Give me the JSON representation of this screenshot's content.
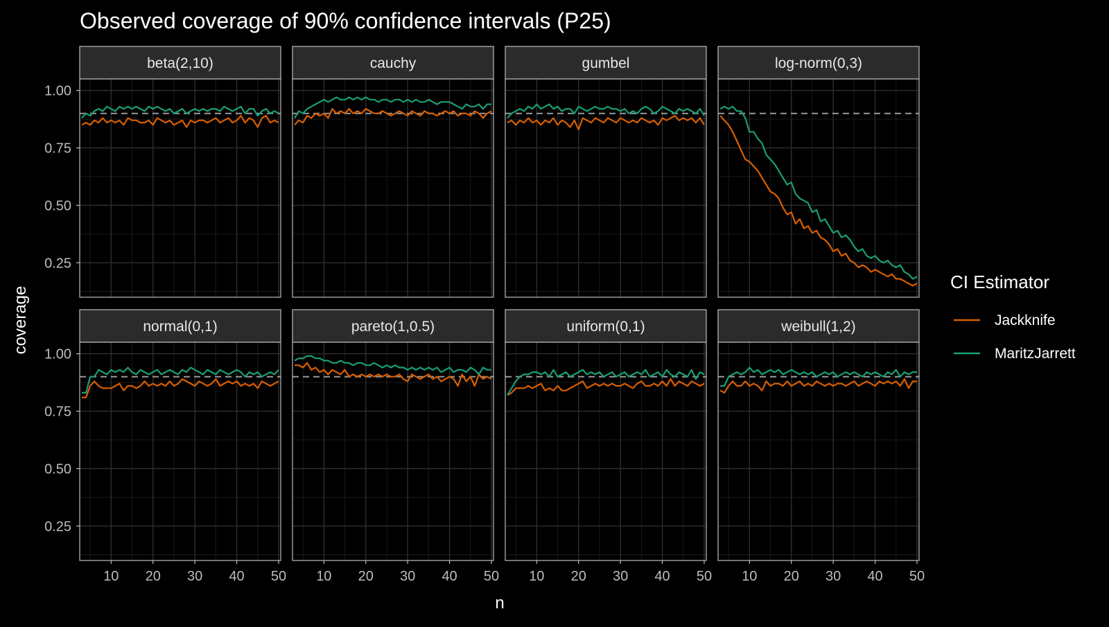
{
  "chart_data": {
    "type": "line",
    "title": "Observed coverage of 90% confidence intervals (P25)",
    "xlabel": "n",
    "ylabel": "coverage",
    "xlim": [
      3,
      50
    ],
    "ylim": [
      0.1,
      1.05
    ],
    "x_ticks": [
      10,
      20,
      30,
      40,
      50
    ],
    "y_ticks": [
      1.0,
      0.75,
      0.5,
      0.25
    ],
    "y_tick_labels": [
      "1.00",
      "0.75",
      "0.50",
      "0.25"
    ],
    "reference_line": 0.9,
    "grid": true,
    "legend": {
      "title": "CI Estimator",
      "placement": "right"
    },
    "colors": {
      "Jackknife": "#d95f02",
      "MaritzJarrett": "#1b9e77",
      "background": "#000000",
      "strip": "#2b2b2b",
      "reference": "#9a9a9a"
    },
    "x": [
      3,
      4,
      5,
      6,
      7,
      8,
      9,
      10,
      11,
      12,
      13,
      14,
      15,
      16,
      17,
      18,
      19,
      20,
      21,
      22,
      23,
      24,
      25,
      26,
      27,
      28,
      29,
      30,
      31,
      32,
      33,
      34,
      35,
      36,
      37,
      38,
      39,
      40,
      41,
      42,
      43,
      44,
      45,
      46,
      47,
      48,
      49,
      50
    ],
    "panels": [
      {
        "label": "beta(2,10)",
        "series": [
          {
            "name": "Jackknife",
            "values": [
              0.85,
              0.86,
              0.85,
              0.87,
              0.86,
              0.88,
              0.86,
              0.87,
              0.86,
              0.87,
              0.85,
              0.88,
              0.87,
              0.87,
              0.86,
              0.86,
              0.87,
              0.85,
              0.88,
              0.87,
              0.86,
              0.87,
              0.85,
              0.86,
              0.87,
              0.84,
              0.87,
              0.86,
              0.87,
              0.87,
              0.86,
              0.87,
              0.88,
              0.86,
              0.87,
              0.88,
              0.86,
              0.87,
              0.89,
              0.86,
              0.88,
              0.87,
              0.84,
              0.88,
              0.89,
              0.86,
              0.87,
              0.86
            ]
          },
          {
            "name": "MaritzJarrett",
            "values": [
              0.88,
              0.9,
              0.89,
              0.91,
              0.92,
              0.91,
              0.93,
              0.92,
              0.91,
              0.93,
              0.92,
              0.93,
              0.92,
              0.93,
              0.92,
              0.91,
              0.93,
              0.92,
              0.93,
              0.92,
              0.91,
              0.92,
              0.9,
              0.91,
              0.92,
              0.9,
              0.91,
              0.92,
              0.91,
              0.92,
              0.91,
              0.92,
              0.92,
              0.91,
              0.93,
              0.92,
              0.91,
              0.92,
              0.93,
              0.9,
              0.92,
              0.92,
              0.89,
              0.91,
              0.92,
              0.9,
              0.91,
              0.9
            ]
          }
        ]
      },
      {
        "label": "cauchy",
        "series": [
          {
            "name": "Jackknife",
            "values": [
              0.85,
              0.87,
              0.86,
              0.89,
              0.88,
              0.9,
              0.89,
              0.9,
              0.88,
              0.92,
              0.9,
              0.91,
              0.9,
              0.92,
              0.9,
              0.91,
              0.9,
              0.92,
              0.91,
              0.9,
              0.9,
              0.91,
              0.9,
              0.89,
              0.9,
              0.91,
              0.9,
              0.89,
              0.91,
              0.9,
              0.89,
              0.91,
              0.9,
              0.9,
              0.89,
              0.9,
              0.91,
              0.9,
              0.91,
              0.89,
              0.9,
              0.9,
              0.89,
              0.91,
              0.9,
              0.88,
              0.9,
              0.91
            ]
          },
          {
            "name": "MaritzJarrett",
            "values": [
              0.88,
              0.91,
              0.9,
              0.92,
              0.93,
              0.94,
              0.95,
              0.96,
              0.95,
              0.96,
              0.97,
              0.96,
              0.96,
              0.97,
              0.96,
              0.97,
              0.96,
              0.97,
              0.96,
              0.96,
              0.95,
              0.96,
              0.96,
              0.95,
              0.96,
              0.96,
              0.95,
              0.96,
              0.95,
              0.96,
              0.95,
              0.95,
              0.96,
              0.95,
              0.94,
              0.95,
              0.95,
              0.95,
              0.94,
              0.93,
              0.92,
              0.94,
              0.93,
              0.93,
              0.94,
              0.92,
              0.94,
              0.94
            ]
          }
        ]
      },
      {
        "label": "gumbel",
        "series": [
          {
            "name": "Jackknife",
            "values": [
              0.86,
              0.87,
              0.85,
              0.87,
              0.86,
              0.88,
              0.86,
              0.87,
              0.85,
              0.87,
              0.86,
              0.88,
              0.85,
              0.87,
              0.86,
              0.84,
              0.87,
              0.83,
              0.88,
              0.87,
              0.86,
              0.88,
              0.87,
              0.86,
              0.88,
              0.87,
              0.86,
              0.88,
              0.87,
              0.86,
              0.87,
              0.86,
              0.88,
              0.87,
              0.86,
              0.87,
              0.85,
              0.88,
              0.87,
              0.88,
              0.89,
              0.87,
              0.88,
              0.87,
              0.88,
              0.86,
              0.88,
              0.85
            ]
          },
          {
            "name": "MaritzJarrett",
            "values": [
              0.88,
              0.9,
              0.91,
              0.92,
              0.91,
              0.93,
              0.92,
              0.94,
              0.92,
              0.93,
              0.94,
              0.92,
              0.93,
              0.91,
              0.92,
              0.92,
              0.9,
              0.93,
              0.92,
              0.91,
              0.92,
              0.93,
              0.92,
              0.92,
              0.93,
              0.92,
              0.92,
              0.91,
              0.92,
              0.9,
              0.91,
              0.9,
              0.92,
              0.93,
              0.92,
              0.9,
              0.91,
              0.93,
              0.92,
              0.91,
              0.9,
              0.92,
              0.91,
              0.92,
              0.91,
              0.9,
              0.92,
              0.89
            ]
          }
        ]
      },
      {
        "label": "log-norm(0,3)",
        "series": [
          {
            "name": "Jackknife",
            "values": [
              0.89,
              0.87,
              0.85,
              0.82,
              0.78,
              0.74,
              0.7,
              0.69,
              0.67,
              0.65,
              0.62,
              0.59,
              0.56,
              0.55,
              0.53,
              0.49,
              0.46,
              0.47,
              0.42,
              0.44,
              0.4,
              0.41,
              0.38,
              0.39,
              0.36,
              0.35,
              0.33,
              0.3,
              0.31,
              0.28,
              0.29,
              0.26,
              0.25,
              0.23,
              0.24,
              0.23,
              0.21,
              0.22,
              0.21,
              0.2,
              0.19,
              0.2,
              0.18,
              0.18,
              0.17,
              0.16,
              0.15,
              0.16
            ]
          },
          {
            "name": "MaritzJarrett",
            "values": [
              0.92,
              0.93,
              0.92,
              0.93,
              0.91,
              0.91,
              0.88,
              0.82,
              0.82,
              0.79,
              0.77,
              0.72,
              0.7,
              0.68,
              0.65,
              0.62,
              0.59,
              0.6,
              0.55,
              0.53,
              0.52,
              0.51,
              0.47,
              0.48,
              0.43,
              0.44,
              0.41,
              0.38,
              0.39,
              0.36,
              0.37,
              0.35,
              0.32,
              0.3,
              0.31,
              0.28,
              0.27,
              0.28,
              0.26,
              0.25,
              0.26,
              0.24,
              0.23,
              0.24,
              0.21,
              0.2,
              0.18,
              0.19
            ]
          }
        ]
      },
      {
        "label": "normal(0,1)",
        "series": [
          {
            "name": "Jackknife",
            "values": [
              0.81,
              0.81,
              0.86,
              0.88,
              0.86,
              0.85,
              0.85,
              0.85,
              0.86,
              0.87,
              0.84,
              0.86,
              0.86,
              0.85,
              0.86,
              0.88,
              0.86,
              0.87,
              0.86,
              0.87,
              0.86,
              0.88,
              0.86,
              0.87,
              0.89,
              0.88,
              0.87,
              0.86,
              0.88,
              0.87,
              0.86,
              0.87,
              0.89,
              0.86,
              0.87,
              0.88,
              0.87,
              0.88,
              0.86,
              0.87,
              0.86,
              0.87,
              0.85,
              0.88,
              0.87,
              0.86,
              0.87,
              0.88
            ]
          },
          {
            "name": "MaritzJarrett",
            "values": [
              0.83,
              0.83,
              0.9,
              0.9,
              0.93,
              0.92,
              0.91,
              0.93,
              0.92,
              0.93,
              0.92,
              0.94,
              0.92,
              0.91,
              0.93,
              0.92,
              0.91,
              0.92,
              0.93,
              0.91,
              0.92,
              0.93,
              0.92,
              0.91,
              0.93,
              0.92,
              0.94,
              0.93,
              0.92,
              0.91,
              0.93,
              0.92,
              0.91,
              0.93,
              0.92,
              0.91,
              0.92,
              0.93,
              0.92,
              0.9,
              0.92,
              0.91,
              0.92,
              0.9,
              0.91,
              0.92,
              0.91,
              0.93
            ]
          }
        ]
      },
      {
        "label": "pareto(1,0.5)",
        "series": [
          {
            "name": "Jackknife",
            "values": [
              0.95,
              0.95,
              0.94,
              0.96,
              0.93,
              0.94,
              0.92,
              0.93,
              0.91,
              0.93,
              0.92,
              0.91,
              0.93,
              0.9,
              0.91,
              0.9,
              0.91,
              0.9,
              0.91,
              0.9,
              0.91,
              0.9,
              0.91,
              0.9,
              0.9,
              0.91,
              0.89,
              0.88,
              0.91,
              0.9,
              0.89,
              0.9,
              0.91,
              0.89,
              0.9,
              0.88,
              0.89,
              0.9,
              0.89,
              0.86,
              0.91,
              0.88,
              0.9,
              0.86,
              0.91,
              0.89,
              0.9,
              0.89
            ]
          },
          {
            "name": "MaritzJarrett",
            "values": [
              0.97,
              0.98,
              0.98,
              0.99,
              0.99,
              0.98,
              0.98,
              0.97,
              0.97,
              0.96,
              0.96,
              0.97,
              0.96,
              0.96,
              0.95,
              0.96,
              0.96,
              0.95,
              0.95,
              0.96,
              0.95,
              0.94,
              0.95,
              0.94,
              0.95,
              0.94,
              0.94,
              0.93,
              0.94,
              0.93,
              0.94,
              0.93,
              0.94,
              0.93,
              0.94,
              0.92,
              0.93,
              0.94,
              0.92,
              0.93,
              0.93,
              0.92,
              0.94,
              0.93,
              0.91,
              0.94,
              0.93,
              0.93
            ]
          }
        ]
      },
      {
        "label": "uniform(0,1)",
        "series": [
          {
            "name": "Jackknife",
            "values": [
              0.82,
              0.83,
              0.85,
              0.85,
              0.85,
              0.86,
              0.85,
              0.86,
              0.87,
              0.84,
              0.85,
              0.84,
              0.86,
              0.84,
              0.84,
              0.85,
              0.86,
              0.87,
              0.88,
              0.85,
              0.86,
              0.87,
              0.86,
              0.87,
              0.86,
              0.87,
              0.86,
              0.86,
              0.87,
              0.86,
              0.85,
              0.87,
              0.88,
              0.86,
              0.86,
              0.87,
              0.86,
              0.88,
              0.86,
              0.89,
              0.86,
              0.88,
              0.87,
              0.86,
              0.88,
              0.87,
              0.86,
              0.87
            ]
          },
          {
            "name": "MaritzJarrett",
            "values": [
              0.82,
              0.85,
              0.88,
              0.9,
              0.91,
              0.91,
              0.92,
              0.92,
              0.91,
              0.92,
              0.9,
              0.93,
              0.9,
              0.91,
              0.92,
              0.9,
              0.91,
              0.92,
              0.93,
              0.91,
              0.92,
              0.91,
              0.92,
              0.9,
              0.91,
              0.92,
              0.9,
              0.91,
              0.92,
              0.9,
              0.91,
              0.92,
              0.91,
              0.93,
              0.9,
              0.91,
              0.92,
              0.9,
              0.93,
              0.91,
              0.9,
              0.92,
              0.91,
              0.9,
              0.93,
              0.89,
              0.92,
              0.91
            ]
          }
        ]
      },
      {
        "label": "weibull(1,2)",
        "series": [
          {
            "name": "Jackknife",
            "values": [
              0.84,
              0.83,
              0.86,
              0.88,
              0.86,
              0.86,
              0.88,
              0.86,
              0.87,
              0.86,
              0.84,
              0.88,
              0.86,
              0.87,
              0.87,
              0.86,
              0.88,
              0.86,
              0.87,
              0.88,
              0.86,
              0.87,
              0.86,
              0.88,
              0.87,
              0.86,
              0.87,
              0.86,
              0.87,
              0.87,
              0.86,
              0.87,
              0.88,
              0.86,
              0.87,
              0.88,
              0.87,
              0.86,
              0.88,
              0.87,
              0.88,
              0.87,
              0.88,
              0.86,
              0.89,
              0.85,
              0.88,
              0.88
            ]
          },
          {
            "name": "MaritzJarrett",
            "values": [
              0.86,
              0.86,
              0.9,
              0.91,
              0.92,
              0.91,
              0.92,
              0.94,
              0.92,
              0.93,
              0.91,
              0.92,
              0.93,
              0.92,
              0.93,
              0.91,
              0.92,
              0.93,
              0.92,
              0.91,
              0.92,
              0.91,
              0.92,
              0.9,
              0.91,
              0.92,
              0.91,
              0.92,
              0.9,
              0.91,
              0.92,
              0.91,
              0.92,
              0.91,
              0.9,
              0.92,
              0.91,
              0.92,
              0.91,
              0.9,
              0.92,
              0.91,
              0.93,
              0.9,
              0.92,
              0.91,
              0.92,
              0.92
            ]
          }
        ]
      }
    ]
  }
}
